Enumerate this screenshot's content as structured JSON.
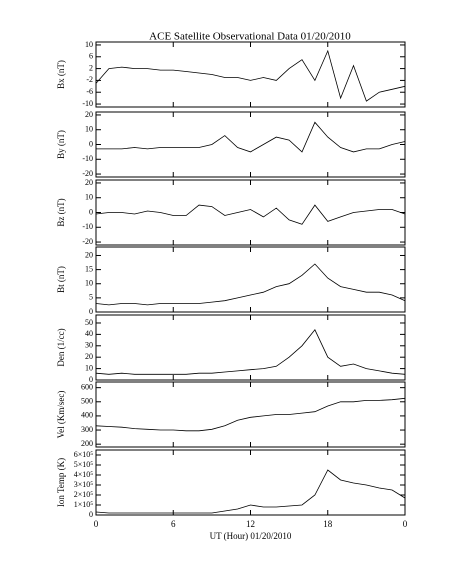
{
  "chart_data": [
    {
      "type": "line",
      "title": "ACE Satellite Observational Data  01/20/2010",
      "ylabel": "Bx (nT)",
      "color": "#000000",
      "x": [
        0,
        1,
        2,
        3,
        4,
        5,
        6,
        7,
        8,
        9,
        10,
        11,
        12,
        13,
        14,
        15,
        16,
        17,
        18,
        19,
        20,
        21,
        22,
        23,
        24
      ],
      "values": [
        -3,
        2,
        2.5,
        2,
        2,
        1.5,
        1.5,
        1,
        0.5,
        0,
        -1,
        -1,
        -2,
        -1,
        -2,
        2,
        5,
        -2,
        8,
        -8,
        3,
        -9,
        -6,
        -5,
        -4
      ],
      "xlim": [
        0,
        24
      ],
      "ylim": [
        -11,
        11
      ],
      "yticks": [
        -10,
        -6,
        -2,
        2,
        6,
        10
      ]
    },
    {
      "type": "line",
      "ylabel": "By (nT)",
      "color": "#000000",
      "x": [
        0,
        1,
        2,
        3,
        4,
        5,
        6,
        7,
        8,
        9,
        10,
        11,
        12,
        13,
        14,
        15,
        16,
        17,
        18,
        19,
        20,
        21,
        22,
        23,
        24
      ],
      "values": [
        -3,
        -3,
        -3,
        -2,
        -3,
        -2,
        -2,
        -2,
        -2,
        0,
        6,
        -2,
        -5,
        0,
        5,
        3,
        -5,
        15,
        5,
        -2,
        -5,
        -3,
        -3,
        0,
        2
      ],
      "xlim": [
        0,
        24
      ],
      "ylim": [
        -22,
        22
      ],
      "yticks": [
        -20,
        -10,
        0,
        10,
        20
      ]
    },
    {
      "type": "line",
      "ylabel": "Bz (nT)",
      "color": "#000000",
      "x": [
        0,
        1,
        2,
        3,
        4,
        5,
        6,
        7,
        8,
        9,
        10,
        11,
        12,
        13,
        14,
        15,
        16,
        17,
        18,
        19,
        20,
        21,
        22,
        23,
        24
      ],
      "values": [
        -1,
        0,
        0,
        -1,
        1,
        0,
        -2,
        -2,
        5,
        4,
        -2,
        0,
        2,
        -3,
        3,
        -5,
        -8,
        5,
        -6,
        -3,
        0,
        1,
        2,
        2,
        -1
      ],
      "xlim": [
        0,
        24
      ],
      "ylim": [
        -22,
        22
      ],
      "yticks": [
        -20,
        -10,
        0,
        10,
        20
      ]
    },
    {
      "type": "line",
      "ylabel": "Bt (nT)",
      "color": "#000000",
      "x": [
        0,
        1,
        2,
        3,
        4,
        5,
        6,
        7,
        8,
        9,
        10,
        11,
        12,
        13,
        14,
        15,
        16,
        17,
        18,
        19,
        20,
        21,
        22,
        23,
        24
      ],
      "values": [
        3,
        2.5,
        3,
        3,
        2.5,
        3,
        3,
        3,
        3,
        3.5,
        4,
        5,
        6,
        7,
        9,
        10,
        13,
        17,
        12,
        9,
        8,
        7,
        7,
        6,
        4
      ],
      "xlim": [
        0,
        24
      ],
      "ylim": [
        0,
        23
      ],
      "yticks": [
        0,
        5,
        10,
        15,
        20
      ]
    },
    {
      "type": "line",
      "ylabel": "Den (1/cc)",
      "color": "#000000",
      "x": [
        0,
        1,
        2,
        3,
        4,
        5,
        6,
        7,
        8,
        9,
        10,
        11,
        12,
        13,
        14,
        15,
        16,
        17,
        18,
        19,
        20,
        21,
        22,
        23,
        24
      ],
      "values": [
        6,
        5,
        6,
        5,
        5,
        5,
        5,
        5,
        6,
        6,
        7,
        8,
        9,
        10,
        12,
        20,
        30,
        44,
        20,
        12,
        14,
        10,
        8,
        6,
        5
      ],
      "xlim": [
        0,
        24
      ],
      "ylim": [
        0,
        57
      ],
      "yticks": [
        0,
        10,
        20,
        30,
        40,
        50
      ]
    },
    {
      "type": "line",
      "ylabel": "Vel (Km/sec)",
      "color": "#000000",
      "x": [
        0,
        1,
        2,
        3,
        4,
        5,
        6,
        7,
        8,
        9,
        10,
        11,
        12,
        13,
        14,
        15,
        16,
        17,
        18,
        19,
        20,
        21,
        22,
        23,
        24
      ],
      "values": [
        330,
        325,
        320,
        310,
        305,
        300,
        300,
        295,
        295,
        305,
        330,
        370,
        390,
        400,
        410,
        410,
        420,
        430,
        470,
        500,
        500,
        510,
        510,
        515,
        525
      ],
      "xlim": [
        0,
        24
      ],
      "ylim": [
        180,
        640
      ],
      "yticks": [
        200,
        300,
        400,
        500,
        600
      ]
    },
    {
      "type": "line",
      "ylabel": "Ion Temp (K)",
      "color": "#000000",
      "xlabel": "UT (Hour)  01/20/2010",
      "x": [
        0,
        1,
        2,
        3,
        4,
        5,
        6,
        7,
        8,
        9,
        10,
        11,
        12,
        13,
        14,
        15,
        16,
        17,
        18,
        19,
        20,
        21,
        22,
        23,
        24
      ],
      "values": [
        30000,
        20000,
        20000,
        20000,
        20000,
        20000,
        20000,
        20000,
        20000,
        20000,
        40000,
        60000,
        100000,
        80000,
        80000,
        90000,
        100000,
        200000,
        450000,
        350000,
        320000,
        300000,
        270000,
        250000,
        170000
      ],
      "xlim": [
        0,
        24
      ],
      "ylim": [
        0,
        650000
      ],
      "yticks": [
        0,
        {
          "value": 100000,
          "label": "1×10⁵"
        },
        {
          "value": 200000,
          "label": "2×10⁵"
        },
        {
          "value": 300000,
          "label": "3×10⁵"
        },
        {
          "value": 400000,
          "label": "4×10⁵"
        },
        {
          "value": 500000,
          "label": "5×10⁵"
        },
        {
          "value": 600000,
          "label": "6×10⁵"
        }
      ],
      "xticks": [
        0,
        6,
        12,
        18,
        {
          "value": 24,
          "label": "0"
        }
      ]
    }
  ]
}
